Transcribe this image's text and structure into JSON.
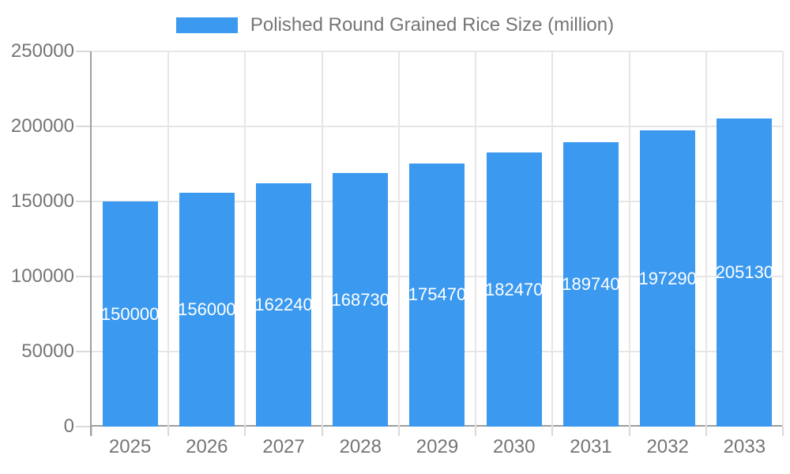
{
  "legend": {
    "label": "Polished Round Grained Rice Size (million)"
  },
  "chart_data": {
    "type": "bar",
    "title": "Polished Round Grained Rice Size (million)",
    "categories": [
      "2025",
      "2026",
      "2027",
      "2028",
      "2029",
      "2030",
      "2031",
      "2032",
      "2033"
    ],
    "values": [
      150000,
      156000,
      162240,
      168730,
      175470,
      182470,
      189740,
      197290,
      205130
    ],
    "series": [
      {
        "name": "Polished Round Grained Rice Size (million)",
        "values": [
          150000,
          156000,
          162240,
          168730,
          175470,
          182470,
          189740,
          197290,
          205130
        ]
      }
    ],
    "xlabel": "",
    "ylabel": "",
    "ylim": [
      0,
      250000
    ],
    "yticks": [
      0,
      50000,
      100000,
      150000,
      200000,
      250000
    ],
    "grid": true,
    "legend_position": "top",
    "bar_labels": "inside-center-white",
    "colors": {
      "bar": "#3b99ef",
      "bar_label": "#ffffff",
      "axis_text": "#757575",
      "gridline": "#e6e6e6",
      "axis_line": "#9e9e9e",
      "tick": "#d9d9d9",
      "background": "#ffffff"
    }
  }
}
